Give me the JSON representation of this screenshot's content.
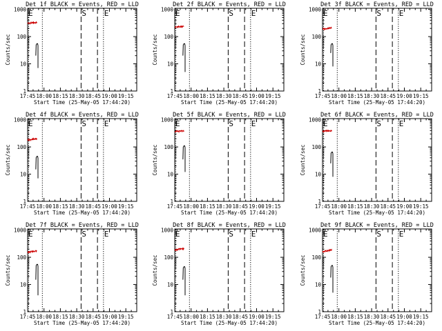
{
  "colors": {
    "events": "#000000",
    "lld": "#cc0000",
    "axis": "#000000"
  },
  "chart_data": {
    "type": "line",
    "x_tick_labels": [
      "17:45",
      "18:00",
      "18:15",
      "18:30",
      "18:45",
      "19:00",
      "19:15"
    ],
    "x_tick_minutes": [
      0,
      15,
      30,
      45,
      60,
      75,
      90
    ],
    "xlim_minutes": [
      0,
      100
    ],
    "y_tick_labels": [
      "1",
      "10",
      "100",
      "1000"
    ],
    "ylim": [
      1,
      1100
    ],
    "yscale": "log",
    "xlabel": "Start Time (25-May-05 17:44:20)",
    "ylabel": "Counts/sec",
    "marker_labels": {
      "E": "E",
      "S": "S"
    },
    "panels": [
      {
        "title": "Det 1f BLACK = Events, RED = LLD",
        "lld": {
          "x": [
            0,
            8.5
          ],
          "y": [
            310,
            330
          ]
        },
        "events": {
          "x": [
            7.5,
            9.5
          ],
          "y_top": 55,
          "y_bottom": 7,
          "y_start": 20
        },
        "lines_dotted": [
          -0.5,
          13.5,
          69.5
        ],
        "lines_dashed": [
          49,
          64
        ]
      },
      {
        "title": "Det 2f BLACK = Events, RED = LLD",
        "lld": {
          "x": [
            0,
            8.5
          ],
          "y": [
            220,
            240
          ]
        },
        "events": {
          "x": [
            7.5,
            9.5
          ],
          "y_top": 55,
          "y_bottom": 5,
          "y_start": 20
        },
        "lines_dotted": [
          -0.5,
          13.5,
          69.5
        ],
        "lines_dashed": [
          49,
          64
        ]
      },
      {
        "title": "Det 3f BLACK = Events, RED = LLD",
        "lld": {
          "x": [
            0,
            8.5
          ],
          "y": [
            190,
            210
          ]
        },
        "events": {
          "x": [
            7.5,
            9.5
          ],
          "y_top": 55,
          "y_bottom": 8,
          "y_start": 25
        },
        "lines_dotted": [
          -0.5,
          13.5,
          69.5
        ],
        "lines_dashed": [
          49,
          64
        ]
      },
      {
        "title": "Det 4f BLACK = Events, RED = LLD",
        "lld": {
          "x": [
            0,
            8.5
          ],
          "y": [
            180,
            200
          ]
        },
        "events": {
          "x": [
            7.5,
            9.5
          ],
          "y_top": 45,
          "y_bottom": 7,
          "y_start": 15
        },
        "lines_dotted": [
          -0.5,
          13.5,
          69.5
        ],
        "lines_dashed": [
          49,
          64
        ]
      },
      {
        "title": "Det 5f BLACK = Events, RED = LLD",
        "lld": {
          "x": [
            0,
            8.5
          ],
          "y": [
            370,
            385
          ]
        },
        "events": {
          "x": [
            7.5,
            9.5
          ],
          "y_top": 110,
          "y_bottom": 12,
          "y_start": 35
        },
        "lines_dotted": [
          -0.5,
          13.5,
          69.5
        ],
        "lines_dashed": [
          49,
          64
        ]
      },
      {
        "title": "Det 6f BLACK = Events, RED = LLD",
        "lld": {
          "x": [
            0,
            8.5
          ],
          "y": [
            380,
            390
          ]
        },
        "events": {
          "x": [
            7.5,
            9.5
          ],
          "y_top": 65,
          "y_bottom": 8,
          "y_start": 25
        },
        "lines_dotted": [
          -0.5,
          13.5,
          69.5
        ],
        "lines_dashed": [
          49,
          64
        ]
      },
      {
        "title": "Det 7f BLACK = Events, RED = LLD",
        "lld": {
          "x": [
            0,
            8.5
          ],
          "y": [
            150,
            175
          ]
        },
        "events": {
          "x": [
            7.5,
            9.5
          ],
          "y_top": 55,
          "y_bottom": 4,
          "y_start": 15
        },
        "lines_dotted": [
          -0.5,
          13.5,
          69.5
        ],
        "lines_dashed": [
          49,
          64
        ]
      },
      {
        "title": "Det 8f BLACK = Events, RED = LLD",
        "lld": {
          "x": [
            0,
            8.5
          ],
          "y": [
            185,
            210
          ]
        },
        "events": {
          "x": [
            7.5,
            9.5
          ],
          "y_top": 45,
          "y_bottom": 4,
          "y_start": 15
        },
        "lines_dotted": [
          -0.5,
          13.5,
          69.5
        ],
        "lines_dashed": [
          49,
          64
        ]
      },
      {
        "title": "Det 9f BLACK = Events, RED = LLD",
        "lld": {
          "x": [
            0,
            8.5
          ],
          "y": [
            160,
            185
          ]
        },
        "events": {
          "x": [
            7.5,
            9.5
          ],
          "y_top": 50,
          "y_bottom": 5,
          "y_start": 18
        },
        "lines_dotted": [
          -0.5,
          13.5,
          69.5
        ],
        "lines_dashed": [
          49,
          64
        ]
      }
    ]
  }
}
